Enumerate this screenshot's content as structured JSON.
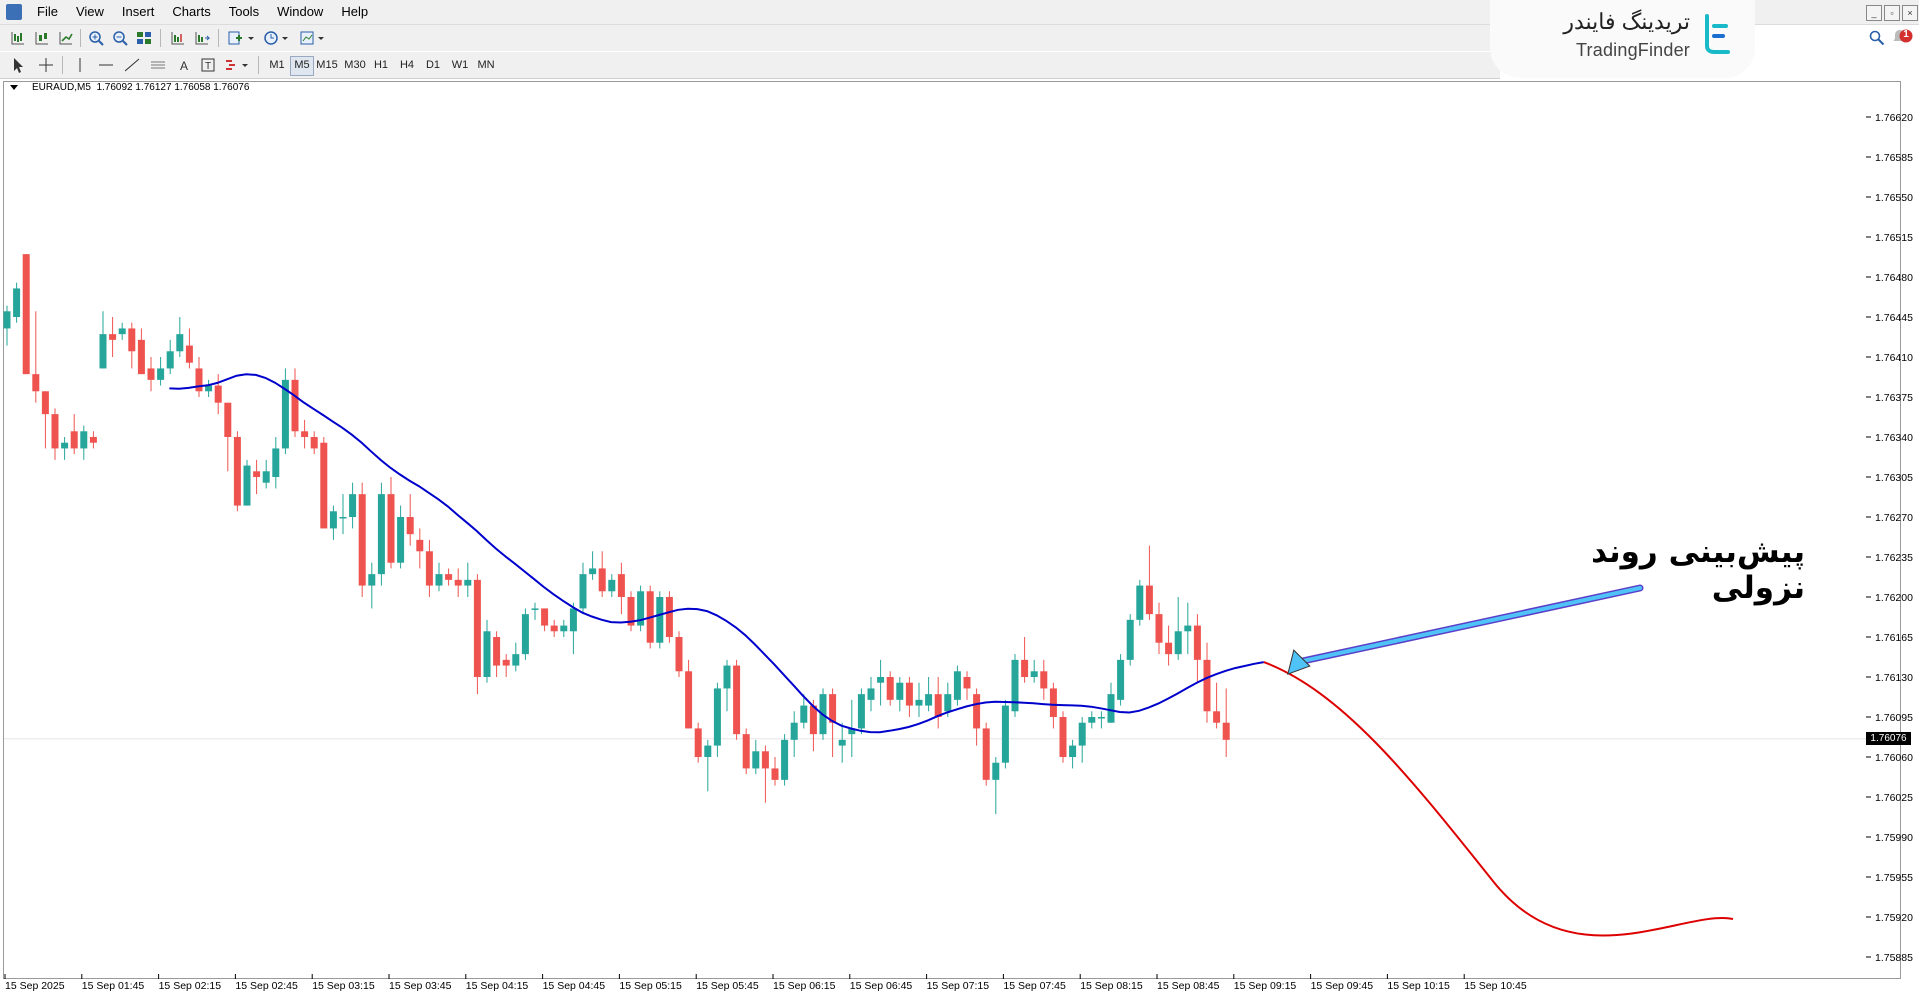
{
  "menu": {
    "items": [
      "File",
      "View",
      "Insert",
      "Charts",
      "Tools",
      "Window",
      "Help"
    ]
  },
  "timeframes": {
    "items": [
      "M1",
      "M5",
      "M15",
      "M30",
      "H1",
      "H4",
      "D1",
      "W1",
      "MN"
    ],
    "active": "M5"
  },
  "brand": {
    "name_fa": "تریدینگ فایندر",
    "name_en": "TradingFinder"
  },
  "notification": {
    "count": "1"
  },
  "chart_header": {
    "symbol": "EURAUD,M5",
    "ohlc": "1.76092 1.76127 1.76058 1.76076"
  },
  "annotation": {
    "text": "پیش‌بینی روند نزولی"
  },
  "colors": {
    "bull": "#26a69a",
    "bear": "#ef5350",
    "trend": "#0000cc",
    "forecast": "#dd0000",
    "arrow": "#4fc3f7",
    "arrow_head": "#5a3fc8"
  },
  "chart_data": {
    "type": "candlestick",
    "symbol": "EURAUD",
    "timeframe": "M5",
    "current_price": "1.76076",
    "ylim": [
      1.7586,
      1.7665
    ],
    "y_ticks": [
      "1.76620",
      "1.76585",
      "1.76550",
      "1.76515",
      "1.76480",
      "1.76445",
      "1.76410",
      "1.76375",
      "1.76340",
      "1.76305",
      "1.76270",
      "1.76235",
      "1.76200",
      "1.76165",
      "1.76130",
      "1.76095",
      "1.76060",
      "1.76025",
      "1.75990",
      "1.75955",
      "1.75920",
      "1.75885"
    ],
    "x_ticks": [
      "15 Sep 2025",
      "15 Sep 01:45",
      "15 Sep 02:15",
      "15 Sep 02:45",
      "15 Sep 03:15",
      "15 Sep 03:45",
      "15 Sep 04:15",
      "15 Sep 04:45",
      "15 Sep 05:15",
      "15 Sep 05:45",
      "15 Sep 06:15",
      "15 Sep 06:45",
      "15 Sep 07:15",
      "15 Sep 07:45",
      "15 Sep 08:15",
      "15 Sep 08:45",
      "15 Sep 09:15",
      "15 Sep 09:45",
      "15 Sep 10:15",
      "15 Sep 10:45"
    ],
    "candles": [
      [
        1.76435,
        1.7645,
        1.7642,
        1.76455
      ],
      [
        1.76445,
        1.7647,
        1.7644,
        1.76475
      ],
      [
        1.765,
        1.76395,
        1.76395,
        1.765
      ],
      [
        1.76395,
        1.7638,
        1.7637,
        1.7645
      ],
      [
        1.7638,
        1.7636,
        1.7633,
        1.7638
      ],
      [
        1.7636,
        1.7633,
        1.7632,
        1.76365
      ],
      [
        1.7633,
        1.76335,
        1.7632,
        1.7634
      ],
      [
        1.76345,
        1.7633,
        1.76325,
        1.7636
      ],
      [
        1.7633,
        1.76345,
        1.7632,
        1.7635
      ],
      [
        1.7634,
        1.76335,
        1.7633,
        1.76345
      ],
      [
        1.764,
        1.7643,
        1.764,
        1.7645
      ],
      [
        1.7643,
        1.76425,
        1.7641,
        1.76445
      ],
      [
        1.7643,
        1.76435,
        1.76425,
        1.7644
      ],
      [
        1.76435,
        1.76415,
        1.764,
        1.7644
      ],
      [
        1.76425,
        1.76395,
        1.76395,
        1.76435
      ],
      [
        1.764,
        1.7639,
        1.7638,
        1.7641
      ],
      [
        1.7639,
        1.764,
        1.76385,
        1.7641
      ],
      [
        1.764,
        1.76415,
        1.76395,
        1.76425
      ],
      [
        1.76415,
        1.7643,
        1.7641,
        1.76445
      ],
      [
        1.7642,
        1.76405,
        1.764,
        1.76435
      ],
      [
        1.764,
        1.7638,
        1.76375,
        1.7641
      ],
      [
        1.7638,
        1.76385,
        1.76375,
        1.7639
      ],
      [
        1.76385,
        1.7637,
        1.7636,
        1.76395
      ],
      [
        1.7637,
        1.7634,
        1.7631,
        1.7637
      ],
      [
        1.7634,
        1.7628,
        1.76275,
        1.76345
      ],
      [
        1.7628,
        1.76315,
        1.7628,
        1.7632
      ],
      [
        1.7631,
        1.76305,
        1.7629,
        1.7632
      ],
      [
        1.763,
        1.7631,
        1.76295,
        1.7632
      ],
      [
        1.76305,
        1.7633,
        1.76295,
        1.7634
      ],
      [
        1.7633,
        1.7639,
        1.76325,
        1.764
      ],
      [
        1.7639,
        1.76345,
        1.7634,
        1.764
      ],
      [
        1.76345,
        1.7634,
        1.7633,
        1.76355
      ],
      [
        1.7634,
        1.7633,
        1.76325,
        1.76345
      ],
      [
        1.76335,
        1.7626,
        1.7626,
        1.7634
      ],
      [
        1.7626,
        1.76275,
        1.7625,
        1.7628
      ],
      [
        1.7627,
        1.7627,
        1.76255,
        1.7629
      ],
      [
        1.7627,
        1.7629,
        1.7626,
        1.763
      ],
      [
        1.7629,
        1.7621,
        1.762,
        1.763
      ],
      [
        1.7621,
        1.7622,
        1.7619,
        1.7623
      ],
      [
        1.7622,
        1.7629,
        1.7621,
        1.763
      ],
      [
        1.7629,
        1.7623,
        1.76225,
        1.76305
      ],
      [
        1.7623,
        1.7627,
        1.76225,
        1.7628
      ],
      [
        1.7627,
        1.76255,
        1.76245,
        1.7629
      ],
      [
        1.7625,
        1.7624,
        1.76225,
        1.7626
      ],
      [
        1.7624,
        1.7621,
        1.762,
        1.7625
      ],
      [
        1.7621,
        1.7622,
        1.76205,
        1.7623
      ],
      [
        1.7622,
        1.76215,
        1.7621,
        1.76225
      ],
      [
        1.76215,
        1.7621,
        1.762,
        1.76225
      ],
      [
        1.7621,
        1.76215,
        1.762,
        1.7623
      ],
      [
        1.76215,
        1.7613,
        1.76115,
        1.7622
      ],
      [
        1.7613,
        1.7617,
        1.76125,
        1.7618
      ],
      [
        1.76165,
        1.7614,
        1.7613,
        1.7617
      ],
      [
        1.76145,
        1.7614,
        1.7613,
        1.7615
      ],
      [
        1.7614,
        1.7615,
        1.76135,
        1.7616
      ],
      [
        1.7615,
        1.76185,
        1.76145,
        1.7619
      ],
      [
        1.7619,
        1.7619,
        1.7618,
        1.76195
      ],
      [
        1.7619,
        1.76175,
        1.7617,
        1.7619
      ],
      [
        1.76175,
        1.7617,
        1.76165,
        1.7618
      ],
      [
        1.7617,
        1.76175,
        1.76165,
        1.7618
      ],
      [
        1.7617,
        1.7619,
        1.7615,
        1.76195
      ],
      [
        1.7619,
        1.7622,
        1.76185,
        1.7623
      ],
      [
        1.7622,
        1.76225,
        1.76215,
        1.7624
      ],
      [
        1.76225,
        1.76205,
        1.762,
        1.7624
      ],
      [
        1.76205,
        1.76215,
        1.762,
        1.7622
      ],
      [
        1.7622,
        1.762,
        1.76185,
        1.7623
      ],
      [
        1.762,
        1.76175,
        1.7617,
        1.76205
      ],
      [
        1.76175,
        1.76205,
        1.7617,
        1.7621
      ],
      [
        1.76205,
        1.7616,
        1.76155,
        1.7621
      ],
      [
        1.7616,
        1.762,
        1.76155,
        1.76205
      ],
      [
        1.762,
        1.76165,
        1.7616,
        1.76205
      ],
      [
        1.76165,
        1.76135,
        1.7613,
        1.7617
      ],
      [
        1.76135,
        1.76085,
        1.76085,
        1.76145
      ],
      [
        1.76085,
        1.7606,
        1.76055,
        1.7609
      ],
      [
        1.7606,
        1.7607,
        1.7603,
        1.76075
      ],
      [
        1.7607,
        1.7612,
        1.7606,
        1.76125
      ],
      [
        1.7612,
        1.7614,
        1.761,
        1.76145
      ],
      [
        1.7614,
        1.7608,
        1.76075,
        1.76145
      ],
      [
        1.7608,
        1.7605,
        1.76045,
        1.76085
      ],
      [
        1.7605,
        1.76065,
        1.76045,
        1.76075
      ],
      [
        1.76065,
        1.7605,
        1.7602,
        1.7607
      ],
      [
        1.7605,
        1.7604,
        1.76035,
        1.7606
      ],
      [
        1.7604,
        1.76075,
        1.76035,
        1.7608
      ],
      [
        1.76075,
        1.7609,
        1.7606,
        1.761
      ],
      [
        1.7609,
        1.76105,
        1.76085,
        1.76115
      ],
      [
        1.76105,
        1.7608,
        1.76065,
        1.7611
      ],
      [
        1.7608,
        1.76115,
        1.76075,
        1.7612
      ],
      [
        1.76115,
        1.7609,
        1.7606,
        1.7612
      ],
      [
        1.7607,
        1.76075,
        1.76055,
        1.7609
      ],
      [
        1.7608,
        1.76085,
        1.7606,
        1.7611
      ],
      [
        1.76085,
        1.76115,
        1.7608,
        1.7612
      ],
      [
        1.7611,
        1.7612,
        1.761,
        1.7613
      ],
      [
        1.76125,
        1.7613,
        1.76105,
        1.76145
      ],
      [
        1.7613,
        1.7611,
        1.76105,
        1.76135
      ],
      [
        1.7611,
        1.76125,
        1.761,
        1.7613
      ],
      [
        1.76125,
        1.76105,
        1.76095,
        1.7613
      ],
      [
        1.76105,
        1.7611,
        1.76095,
        1.76125
      ],
      [
        1.76105,
        1.76115,
        1.761,
        1.7613
      ],
      [
        1.76115,
        1.76095,
        1.76085,
        1.7613
      ],
      [
        1.761,
        1.76115,
        1.76095,
        1.76125
      ],
      [
        1.7611,
        1.76135,
        1.76105,
        1.7614
      ],
      [
        1.7613,
        1.7612,
        1.7611,
        1.76135
      ],
      [
        1.76115,
        1.76085,
        1.7607,
        1.7612
      ],
      [
        1.76085,
        1.7604,
        1.76035,
        1.7609
      ],
      [
        1.7604,
        1.76055,
        1.7601,
        1.7606
      ],
      [
        1.76055,
        1.76105,
        1.7605,
        1.7611
      ],
      [
        1.761,
        1.76145,
        1.76095,
        1.7615
      ],
      [
        1.76145,
        1.7613,
        1.76125,
        1.76165
      ],
      [
        1.7613,
        1.76135,
        1.76125,
        1.76145
      ],
      [
        1.76135,
        1.7612,
        1.7611,
        1.76145
      ],
      [
        1.7612,
        1.76095,
        1.76085,
        1.76125
      ],
      [
        1.76095,
        1.7606,
        1.76055,
        1.761
      ],
      [
        1.7606,
        1.7607,
        1.7605,
        1.76075
      ],
      [
        1.7607,
        1.7609,
        1.76055,
        1.76095
      ],
      [
        1.7609,
        1.76095,
        1.76085,
        1.761
      ],
      [
        1.76095,
        1.76095,
        1.76085,
        1.761
      ],
      [
        1.7609,
        1.76115,
        1.7609,
        1.76125
      ],
      [
        1.7611,
        1.76145,
        1.76105,
        1.7615
      ],
      [
        1.76145,
        1.7618,
        1.7614,
        1.76185
      ],
      [
        1.7618,
        1.7621,
        1.76175,
        1.76215
      ],
      [
        1.7621,
        1.76185,
        1.7618,
        1.76245
      ],
      [
        1.76185,
        1.7616,
        1.7615,
        1.76195
      ],
      [
        1.7616,
        1.7615,
        1.7614,
        1.76175
      ],
      [
        1.7615,
        1.7617,
        1.76145,
        1.762
      ],
      [
        1.7617,
        1.76175,
        1.7615,
        1.76195
      ],
      [
        1.76175,
        1.76145,
        1.76125,
        1.76185
      ],
      [
        1.76145,
        1.761,
        1.7609,
        1.7616
      ],
      [
        1.761,
        1.7609,
        1.76085,
        1.76125
      ],
      [
        1.7609,
        1.76075,
        1.7606,
        1.7612
      ]
    ],
    "ma_line": "moving average (blue)",
    "forecast_line": "downward forecast (red)"
  }
}
